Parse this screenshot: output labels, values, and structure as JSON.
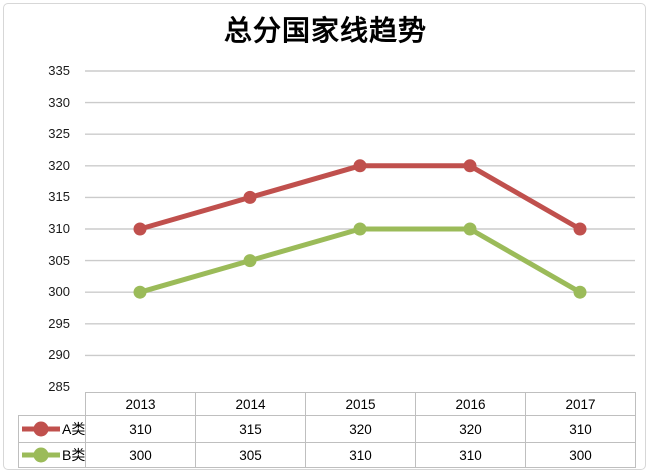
{
  "chart_data": {
    "type": "line",
    "title": "总分国家线趋势",
    "categories": [
      "2013",
      "2014",
      "2015",
      "2016",
      "2017"
    ],
    "series": [
      {
        "name": "A类",
        "values": [
          310,
          315,
          320,
          320,
          310
        ],
        "color": "#C0504D"
      },
      {
        "name": "B类",
        "values": [
          300,
          305,
          310,
          310,
          300
        ],
        "color": "#9BBB59"
      }
    ],
    "xlabel": "",
    "ylabel": "",
    "ylim": [
      285,
      335
    ],
    "yticks": [
      335,
      330,
      325,
      320,
      315,
      310,
      305,
      300,
      295,
      290,
      285
    ],
    "grid": true,
    "marker": "circle",
    "legend_position": "data-table-left"
  },
  "colors": {
    "series_a": "#C0504D",
    "series_b": "#9BBB59",
    "gridline": "#CBCBCB",
    "table_border": "#BFBFBF",
    "frame_border": "#D7D7D7",
    "text": "#000000"
  }
}
